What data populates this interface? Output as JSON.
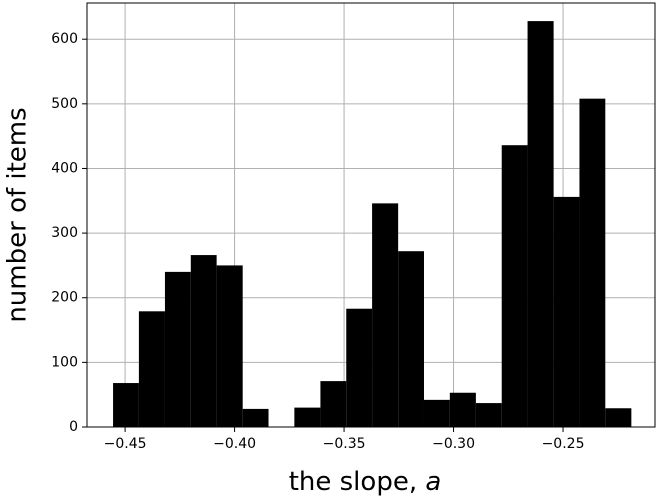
{
  "chart_data": {
    "type": "histogram",
    "xlabel": "the slope, ",
    "xlabel_symbol": "a",
    "ylabel": "number of items",
    "bins": [
      -0.4555,
      -0.4437,
      -0.4318,
      -0.42,
      -0.4082,
      -0.3963,
      -0.3845,
      -0.3727,
      -0.3608,
      -0.349,
      -0.3372,
      -0.3253,
      -0.3135,
      -0.3017,
      -0.2898,
      -0.278,
      -0.2662,
      -0.2543,
      -0.2425,
      -0.2307,
      -0.2188
    ],
    "values": [
      68,
      179,
      240,
      266,
      250,
      28,
      0,
      30,
      71,
      183,
      346,
      272,
      42,
      53,
      37,
      436,
      628,
      356,
      508,
      29
    ],
    "color": "#000000",
    "xlim": [
      -0.4674,
      -0.208
    ],
    "ylim": [
      0,
      656
    ],
    "xticks": [
      {
        "value": -0.45,
        "label": "−0.45"
      },
      {
        "value": -0.4,
        "label": "−0.40"
      },
      {
        "value": -0.35,
        "label": "−0.35"
      },
      {
        "value": -0.3,
        "label": "−0.30"
      },
      {
        "value": -0.25,
        "label": "−0.25"
      }
    ],
    "yticks": [
      0,
      100,
      200,
      300,
      400,
      500,
      600
    ],
    "grid": true
  }
}
